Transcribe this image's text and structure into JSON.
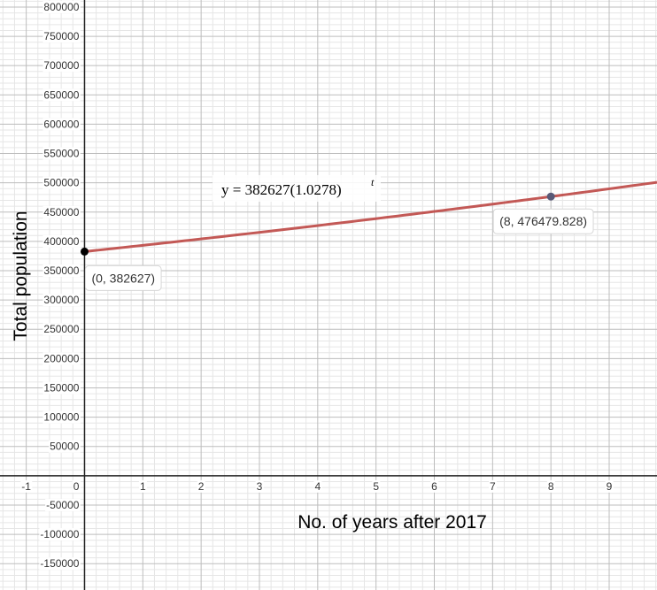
{
  "chart_data": {
    "type": "line",
    "xlabel": "No. of years after 2017",
    "ylabel": "Total population",
    "xlim": [
      -1.45,
      9.82
    ],
    "ylim": [
      -195000,
      812000
    ],
    "x_ticks": [
      -1,
      0,
      1,
      2,
      3,
      4,
      5,
      6,
      7,
      8,
      9
    ],
    "x_tick_labels": [
      "-1",
      "0",
      "1",
      "2",
      "3",
      "4",
      "5",
      "6",
      "7",
      "8",
      "9"
    ],
    "y_ticks": [
      -150000,
      -100000,
      -50000,
      50000,
      100000,
      150000,
      200000,
      250000,
      300000,
      350000,
      400000,
      450000,
      500000,
      550000,
      600000,
      650000,
      700000,
      750000,
      800000
    ],
    "y_tick_labels": [
      "-150000",
      "-100000",
      "-50000",
      "50000",
      "100000",
      "150000",
      "200000",
      "250000",
      "300000",
      "350000",
      "400000",
      "450000",
      "500000",
      "550000",
      "600000",
      "650000",
      "700000",
      "750000",
      "800000"
    ],
    "grid": true,
    "series": [
      {
        "equation_text": "y = 382627(1.0278)",
        "equation_exponent": "t",
        "a": 382627,
        "b": 1.0278,
        "x_range": [
          0,
          9.82
        ],
        "color": "#c0504d"
      }
    ],
    "points": [
      {
        "x": 0,
        "y": 382627,
        "label": "(0, 382627)",
        "color": "#000000"
      },
      {
        "x": 8,
        "y": 476479.828,
        "label": "(8, 476479.828)",
        "color": "#5a5a78"
      }
    ]
  }
}
